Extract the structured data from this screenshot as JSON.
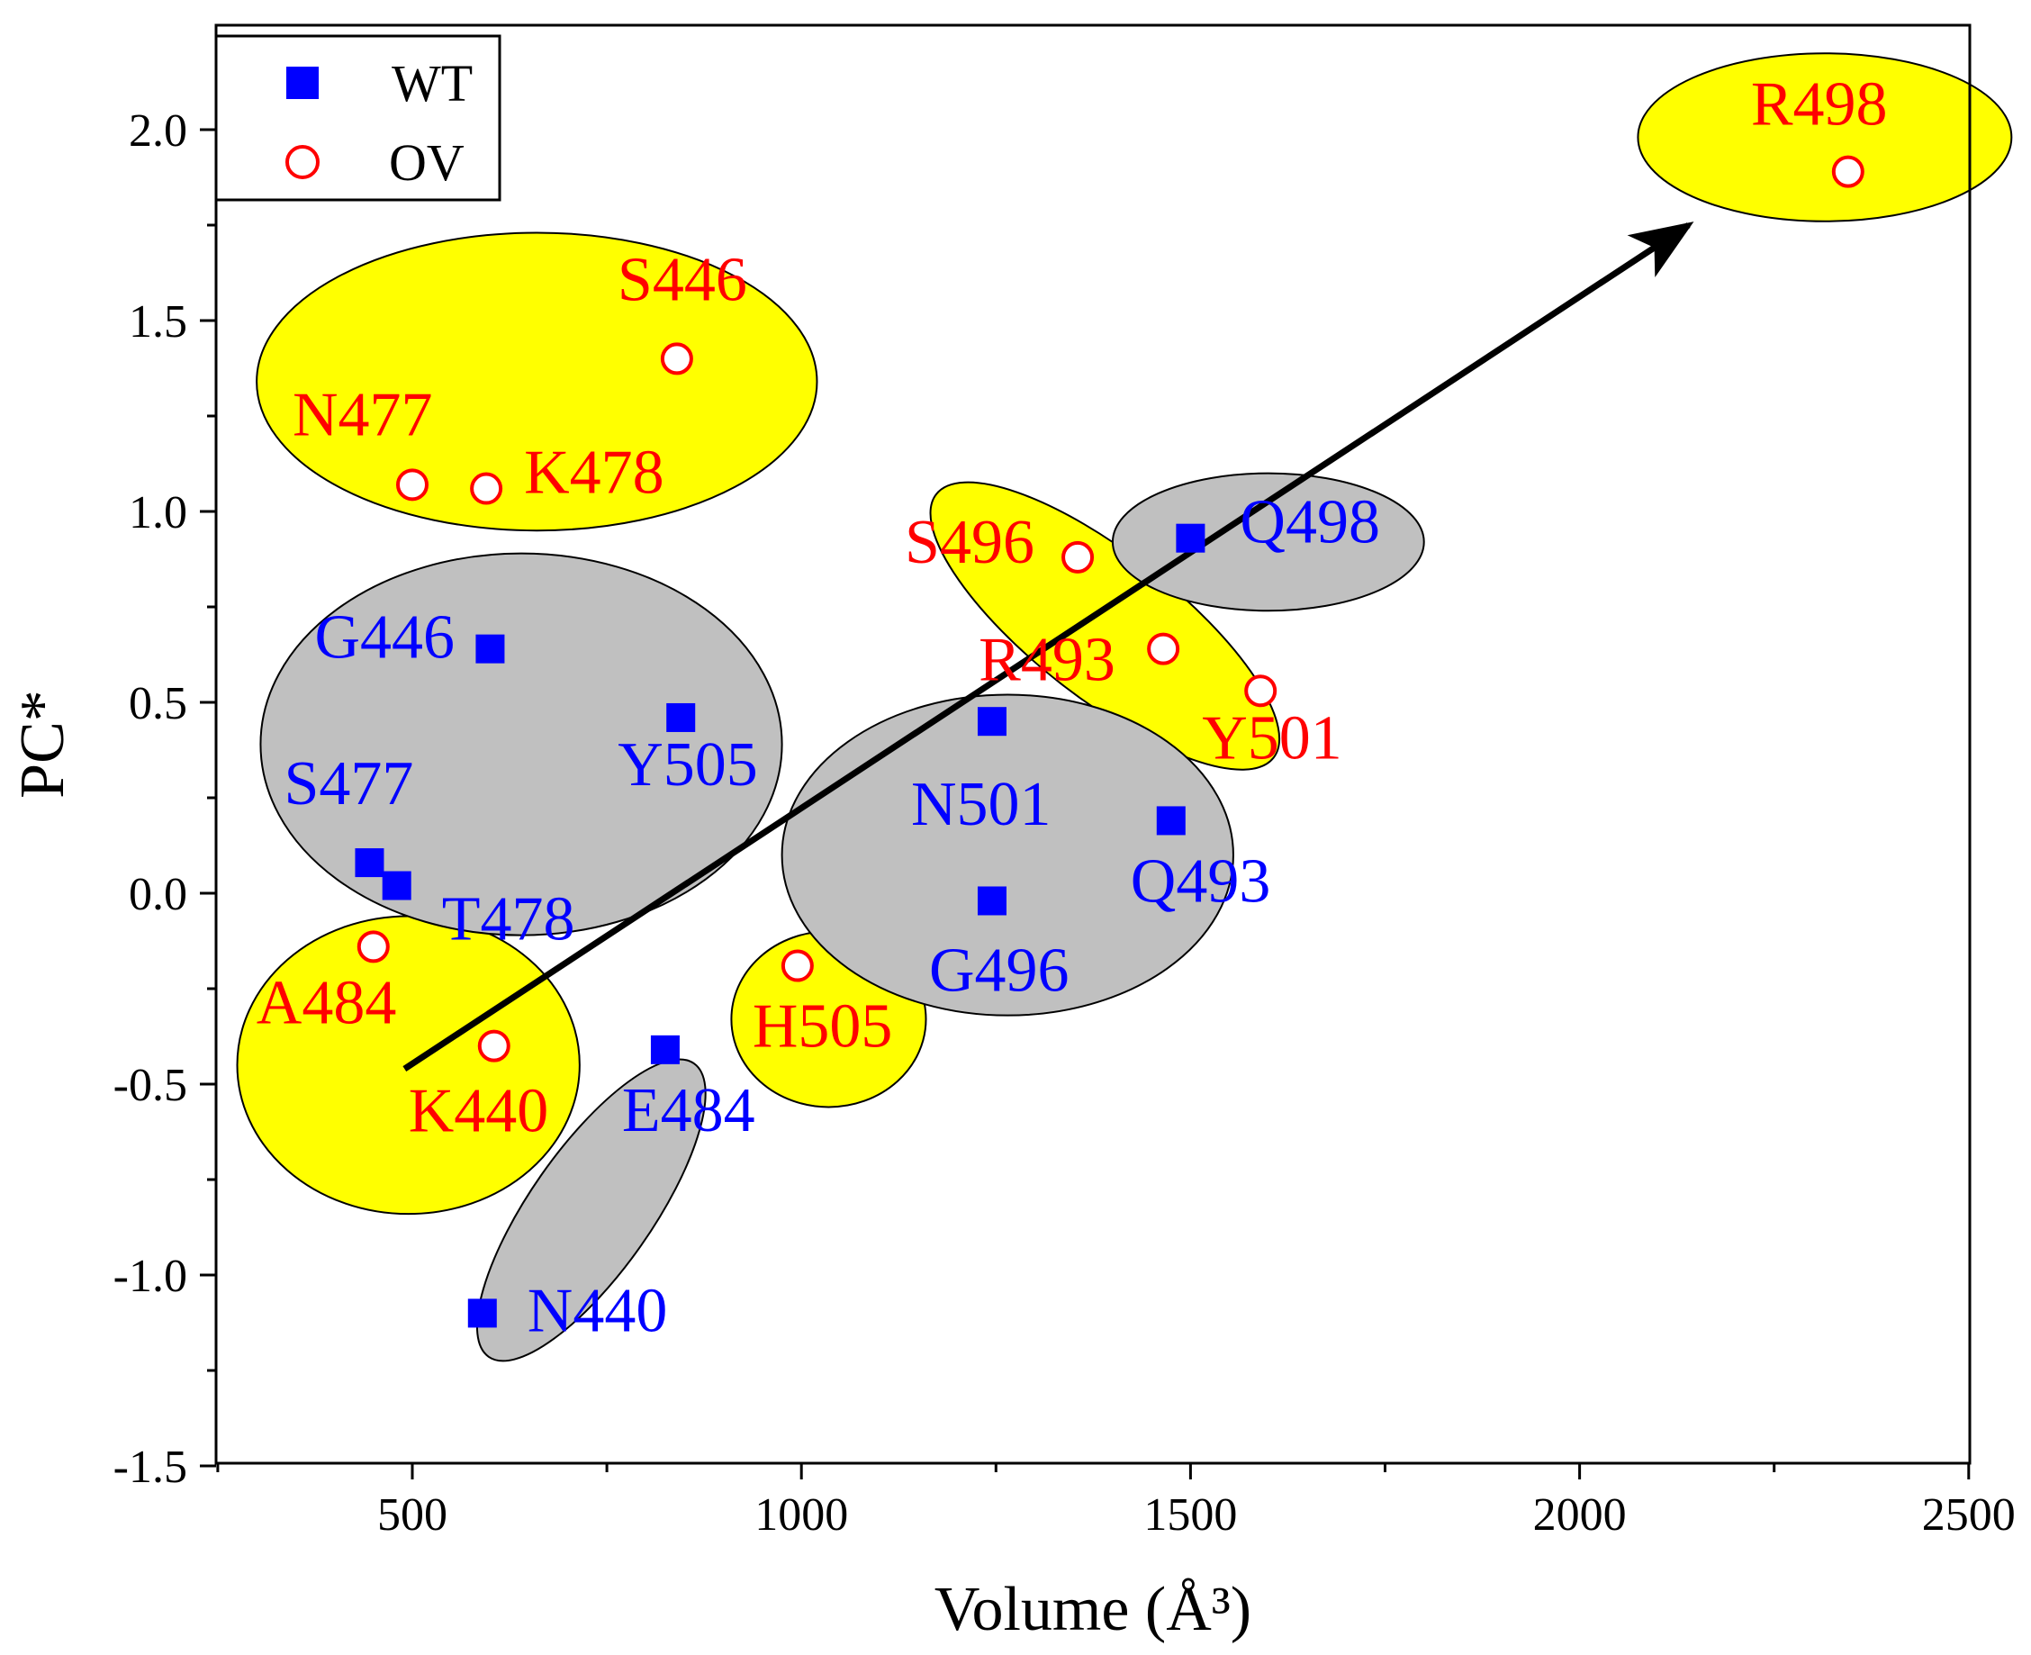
{
  "chart_data": {
    "type": "scatter",
    "xlabel": "Volume (Å³)",
    "ylabel": "PC*",
    "xlim": [
      250,
      2500
    ],
    "ylim": [
      -1.5,
      2.25
    ],
    "x_ticks": [
      500,
      1000,
      1500,
      2000,
      2500
    ],
    "y_ticks": [
      -1.5,
      -1.0,
      -0.5,
      0.0,
      0.5,
      1.0,
      1.5,
      2.0
    ],
    "x_tick_labels": [
      "500",
      "1000",
      "1500",
      "2000",
      "2500"
    ],
    "y_tick_labels": [
      "-1.5",
      "-1.0",
      "-0.5",
      "0.0",
      "0.5",
      "1.0",
      "1.5",
      "2.0"
    ],
    "legend": {
      "position": "top-left",
      "entries": [
        "WT",
        "OV"
      ]
    },
    "colors": {
      "wt": "#0000ff",
      "ov": "#ff0000",
      "yellow_region": "#ffff00",
      "gray_region": "#c0c0c0"
    },
    "series": [
      {
        "name": "WT",
        "marker": "filled-square",
        "points": [
          {
            "label": "G446",
            "x": 600,
            "y": 0.64
          },
          {
            "label": "Y505",
            "x": 845,
            "y": 0.46
          },
          {
            "label": "S477",
            "x": 445,
            "y": 0.08
          },
          {
            "label": "T478",
            "x": 480,
            "y": 0.02
          },
          {
            "label": "N501",
            "x": 1245,
            "y": 0.45
          },
          {
            "label": "G496",
            "x": 1245,
            "y": -0.02
          },
          {
            "label": "Q493",
            "x": 1475,
            "y": 0.19
          },
          {
            "label": "Q498",
            "x": 1500,
            "y": 0.93
          },
          {
            "label": "E484",
            "x": 825,
            "y": -0.41
          },
          {
            "label": "N440",
            "x": 590,
            "y": -1.1
          }
        ]
      },
      {
        "name": "OV",
        "marker": "open-circle",
        "points": [
          {
            "label": "S446",
            "x": 840,
            "y": 1.4
          },
          {
            "label": "N477",
            "x": 500,
            "y": 1.07
          },
          {
            "label": "K478",
            "x": 595,
            "y": 1.06
          },
          {
            "label": "S496",
            "x": 1355,
            "y": 0.88
          },
          {
            "label": "R493",
            "x": 1465,
            "y": 0.64
          },
          {
            "label": "Y501",
            "x": 1590,
            "y": 0.53
          },
          {
            "label": "A484",
            "x": 450,
            "y": -0.14
          },
          {
            "label": "K440",
            "x": 605,
            "y": -0.4
          },
          {
            "label": "H505",
            "x": 995,
            "y": -0.19
          },
          {
            "label": "R498",
            "x": 2345,
            "y": 1.89
          }
        ]
      }
    ],
    "regions": [
      {
        "group": "OV",
        "cx": 660,
        "cy": 1.34,
        "rx": 360,
        "ry": 0.39,
        "rotate": 0
      },
      {
        "group": "OV",
        "cx": 2315,
        "cy": 1.98,
        "rx": 240,
        "ry": 0.22,
        "rotate": 0
      },
      {
        "group": "OV",
        "cx": 1390,
        "cy": 0.7,
        "rx": 275,
        "ry": 0.19,
        "rotate": 38
      },
      {
        "group": "OV",
        "cx": 495,
        "cy": -0.45,
        "rx": 220,
        "ry": 0.39,
        "rotate": 0
      },
      {
        "group": "OV",
        "cx": 1035,
        "cy": -0.33,
        "rx": 125,
        "ry": 0.23,
        "rotate": 0
      },
      {
        "group": "WT",
        "cx": 640,
        "cy": 0.39,
        "rx": 335,
        "ry": 0.5,
        "rotate": 0
      },
      {
        "group": "WT",
        "cx": 1600,
        "cy": 0.92,
        "rx": 200,
        "ry": 0.18,
        "rotate": 0
      },
      {
        "group": "WT",
        "cx": 1265,
        "cy": 0.1,
        "rx": 290,
        "ry": 0.42,
        "rotate": 0
      },
      {
        "group": "WT",
        "cx": 730,
        "cy": -0.83,
        "rx": 230,
        "ry": 0.16,
        "rotate": -55
      }
    ],
    "trend_arrow": {
      "from": [
        490,
        -0.46
      ],
      "to": [
        2140,
        1.75
      ]
    }
  }
}
